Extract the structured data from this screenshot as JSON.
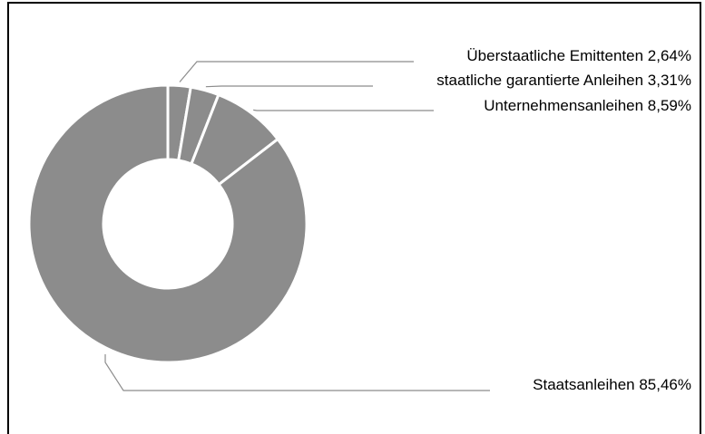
{
  "chart_data": {
    "type": "pie",
    "variant": "donut",
    "slices": [
      {
        "label": "Überstaatliche Emittenten 2,64%",
        "value": 2.64
      },
      {
        "label": "staatliche garantierte Anleihen 3,31%",
        "value": 3.31
      },
      {
        "label": "Unternehmensanleihen 8,59%",
        "value": 8.59
      },
      {
        "label": "Staatsanleihen 85,46%",
        "value": 85.46
      }
    ],
    "slice_color": "#8c8c8c",
    "separator_color": "#ffffff",
    "leader_line_color": "#8c8c8c",
    "legend": "none"
  }
}
